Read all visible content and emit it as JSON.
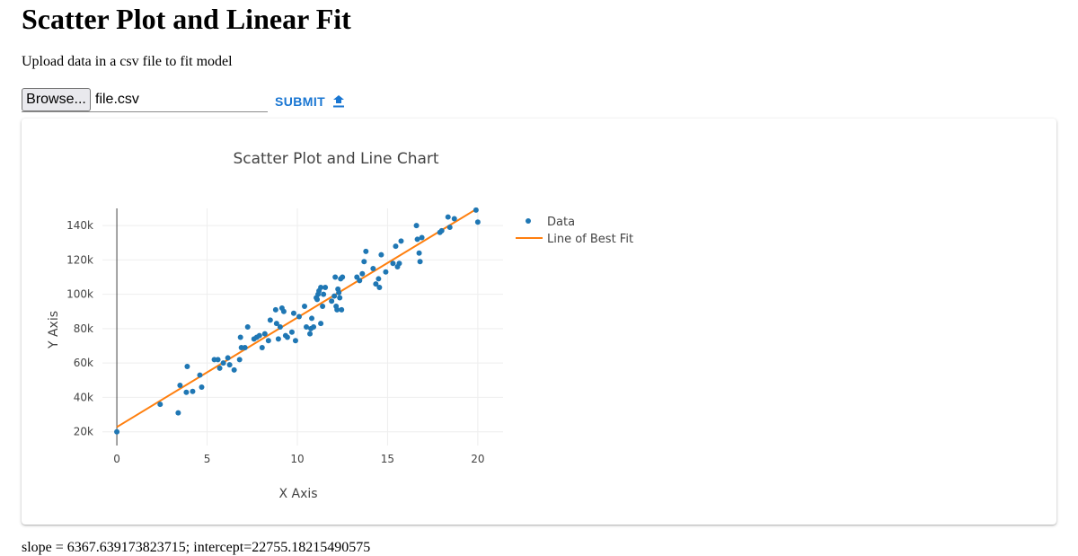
{
  "page": {
    "title": "Scatter Plot and Linear Fit",
    "subtitle": "Upload data in a csv file to fit model"
  },
  "upload": {
    "browse_label": "Browse...",
    "file_name": "file.csv",
    "submit_label": "SUBMIT",
    "submit_icon": "upload-icon",
    "accent_color": "#1976d2"
  },
  "result": {
    "text": "slope = 6367.639173823715; intercept=22755.18215490575"
  },
  "chart_data": {
    "type": "scatter",
    "title": "Scatter Plot and Line Chart",
    "xlabel": "X Axis",
    "ylabel": "Y Axis",
    "xlim": [
      -0.8,
      21.4
    ],
    "ylim": [
      12000,
      150000
    ],
    "x_ticks": [
      0,
      5,
      10,
      15,
      20
    ],
    "x_tick_labels": [
      "0",
      "5",
      "10",
      "15",
      "20"
    ],
    "y_ticks": [
      20000,
      40000,
      60000,
      80000,
      100000,
      120000,
      140000
    ],
    "y_tick_labels": [
      "20k",
      "40k",
      "60k",
      "80k",
      "100k",
      "120k",
      "140k"
    ],
    "grid": true,
    "legend_position": "right",
    "series": [
      {
        "name": "Data",
        "mode": "markers",
        "color": "#1f77b4",
        "x": [
          0,
          2.4,
          3.4,
          3.5,
          3.85,
          3.9,
          4.2,
          4.6,
          4.7,
          5.4,
          5.6,
          5.7,
          5.9,
          6.15,
          6.25,
          6.5,
          6.8,
          6.85,
          6.9,
          7.1,
          7.25,
          7.6,
          7.75,
          7.9,
          8.05,
          8.2,
          8.4,
          8.5,
          8.8,
          8.85,
          8.95,
          9.05,
          9.15,
          9.25,
          9.35,
          9.45,
          9.7,
          9.8,
          9.9,
          10.1,
          10.4,
          10.5,
          10.7,
          10.75,
          10.8,
          10.9,
          11.05,
          11.1,
          11.15,
          11.2,
          11.3,
          11.3,
          11.4,
          11.45,
          11.55,
          11.9,
          12.05,
          12.1,
          12.15,
          12.2,
          12.25,
          12.3,
          12.35,
          12.4,
          12.45,
          12.5,
          13.3,
          13.45,
          13.6,
          13.7,
          13.8,
          14.2,
          14.35,
          14.5,
          14.55,
          14.65,
          14.9,
          15.3,
          15.45,
          15.55,
          15.65,
          15.75,
          16.6,
          16.65,
          16.75,
          16.8,
          16.9,
          17.9,
          18.0,
          18.35,
          18.45,
          18.7,
          19.9,
          20.0
        ],
        "y": [
          20000,
          36000,
          31000,
          47000,
          43000,
          58000,
          43500,
          53000,
          46000,
          62000,
          62000,
          57000,
          60000,
          63000,
          59000,
          56000,
          62000,
          75000,
          69000,
          69000,
          81000,
          74000,
          75000,
          76000,
          69000,
          77000,
          73000,
          85000,
          91000,
          83000,
          74000,
          81000,
          92000,
          90000,
          76000,
          75000,
          78000,
          89000,
          73000,
          87000,
          93000,
          81000,
          77000,
          80000,
          86000,
          81000,
          98000,
          97000,
          100000,
          102000,
          83000,
          104000,
          93000,
          100000,
          104000,
          96000,
          99000,
          110000,
          93000,
          91000,
          103000,
          101000,
          98000,
          109000,
          91000,
          110000,
          110000,
          108000,
          112000,
          119000,
          125000,
          115000,
          106000,
          109000,
          104000,
          123000,
          113000,
          118000,
          128000,
          116000,
          118000,
          131000,
          140000,
          132000,
          124000,
          119000,
          133000,
          136000,
          137000,
          145000,
          139000,
          144000,
          149000,
          142000
        ]
      },
      {
        "name": "Line of Best Fit",
        "mode": "lines",
        "color": "#ff7f0e",
        "x": [
          0,
          20
        ],
        "y": [
          22755.18,
          150107.96
        ]
      }
    ]
  }
}
